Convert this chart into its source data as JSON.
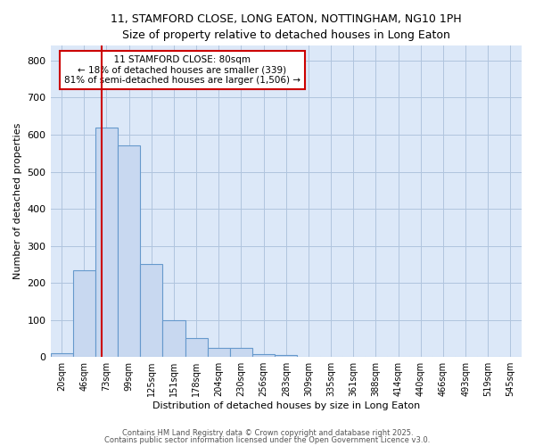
{
  "title_line1": "11, STAMFORD CLOSE, LONG EATON, NOTTINGHAM, NG10 1PH",
  "title_line2": "Size of property relative to detached houses in Long Eaton",
  "xlabel": "Distribution of detached houses by size in Long Eaton",
  "ylabel": "Number of detached properties",
  "bin_labels": [
    "20sqm",
    "46sqm",
    "73sqm",
    "99sqm",
    "125sqm",
    "151sqm",
    "178sqm",
    "204sqm",
    "230sqm",
    "256sqm",
    "283sqm",
    "309sqm",
    "335sqm",
    "361sqm",
    "388sqm",
    "414sqm",
    "440sqm",
    "466sqm",
    "493sqm",
    "519sqm",
    "545sqm"
  ],
  "bar_values": [
    10,
    235,
    620,
    570,
    250,
    100,
    50,
    25,
    25,
    8,
    5,
    0,
    0,
    0,
    0,
    0,
    0,
    0,
    0,
    0,
    0
  ],
  "bar_color": "#c8d8f0",
  "bar_edgecolor": "#6699cc",
  "annotation_title": "11 STAMFORD CLOSE: 80sqm",
  "annotation_line2": "← 18% of detached houses are smaller (339)",
  "annotation_line3": "81% of semi-detached houses are larger (1,506) →",
  "annotation_color": "#cc0000",
  "ylim": [
    0,
    840
  ],
  "yticks": [
    0,
    100,
    200,
    300,
    400,
    500,
    600,
    700,
    800
  ],
  "plot_bg_color": "#dce8f8",
  "fig_bg_color": "#ffffff",
  "grid_color": "#b0c4de",
  "footnote1": "Contains HM Land Registry data © Crown copyright and database right 2025.",
  "footnote2": "Contains public sector information licensed under the Open Government Licence v3.0."
}
